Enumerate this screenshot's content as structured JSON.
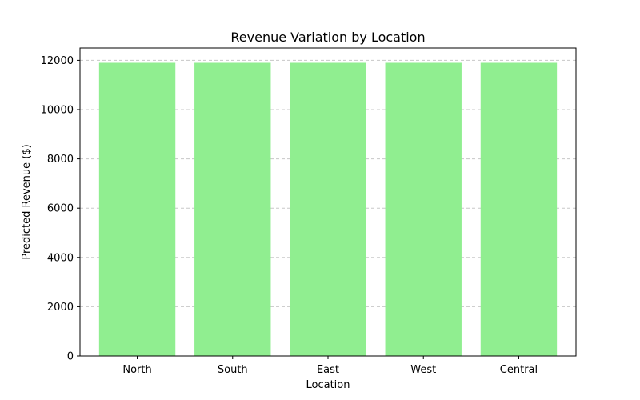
{
  "chart_data": {
    "type": "bar",
    "title": "Revenue Variation by Location",
    "xlabel": "Location",
    "ylabel": "Predicted Revenue ($)",
    "categories": [
      "North",
      "South",
      "East",
      "West",
      "Central"
    ],
    "values": [
      11900,
      11900,
      11900,
      11900,
      11900
    ],
    "ylim": [
      0,
      12500
    ],
    "yticks": [
      0,
      2000,
      4000,
      6000,
      8000,
      10000,
      12000
    ],
    "ytick_labels": [
      "0",
      "2000",
      "4000",
      "6000",
      "8000",
      "10000",
      "12000"
    ],
    "grid": "y-dashed",
    "bar_color": "#90ee90"
  }
}
